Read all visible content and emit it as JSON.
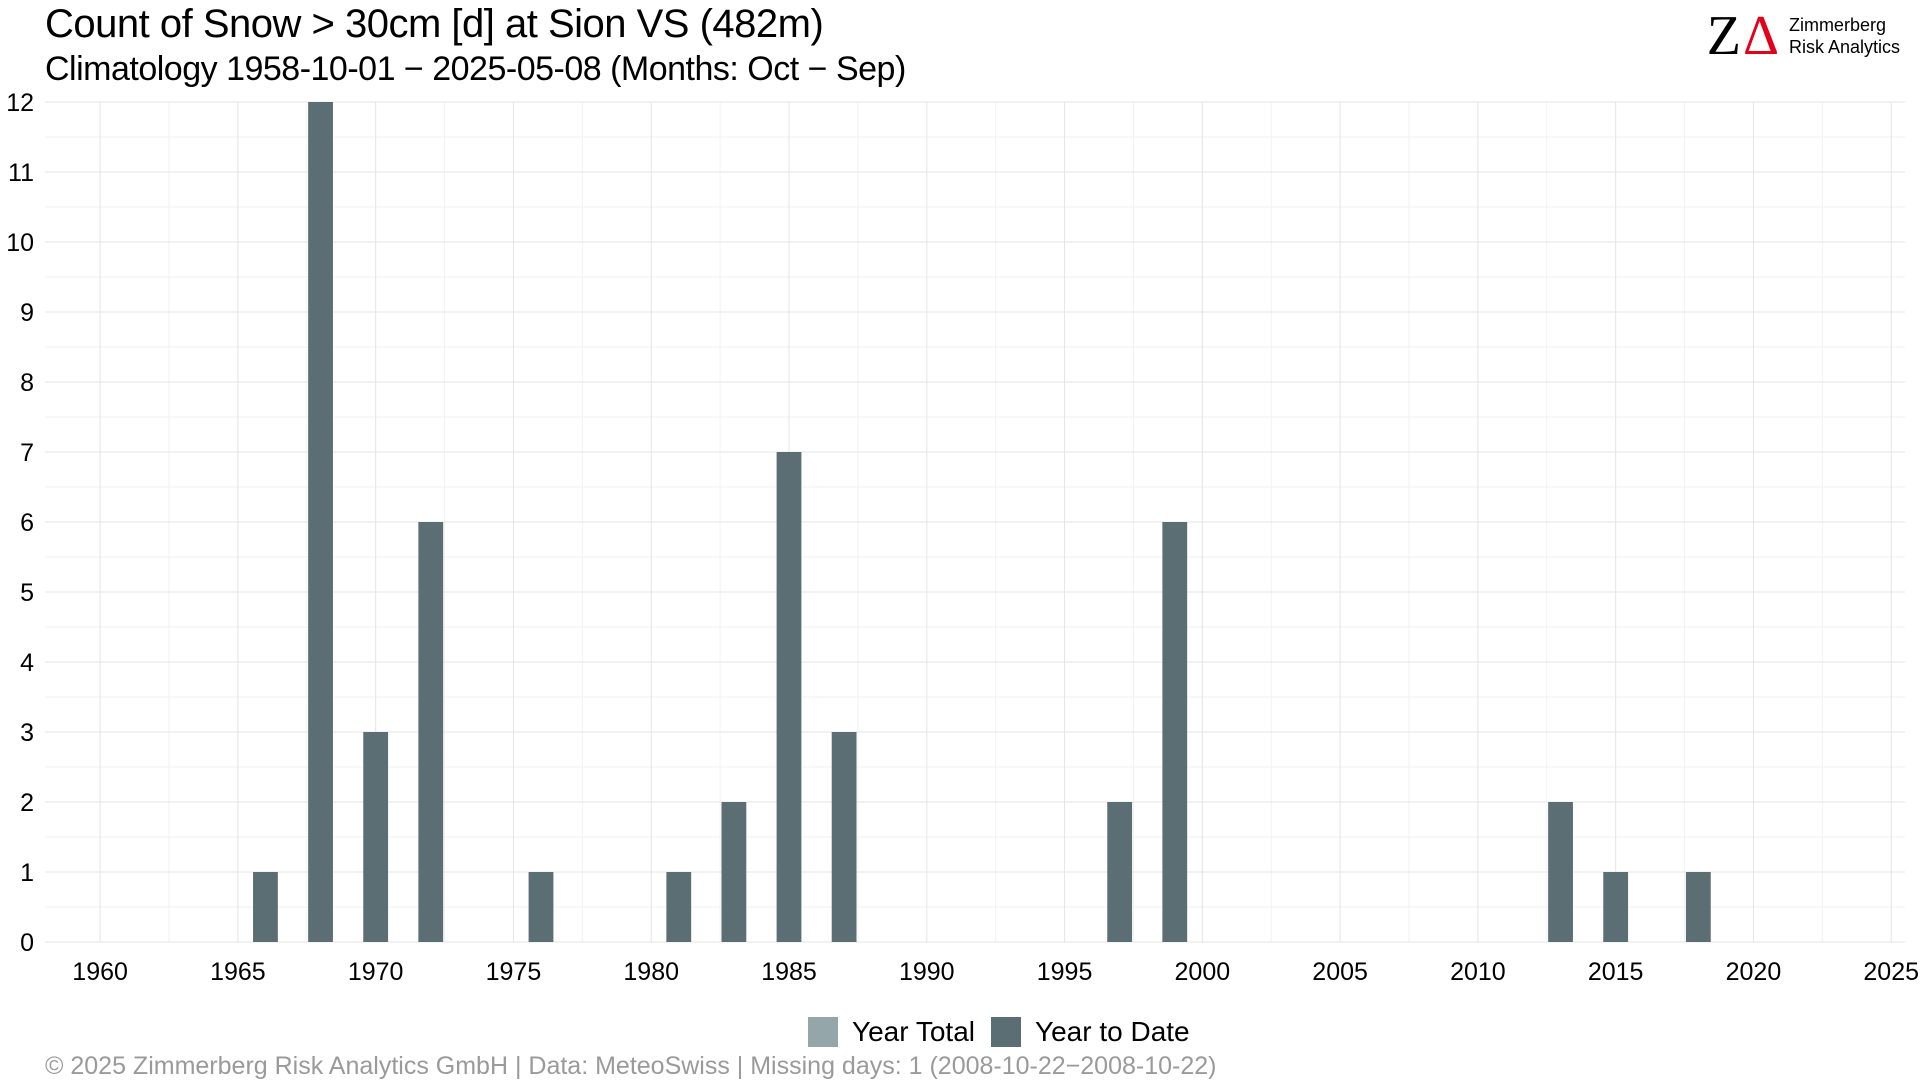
{
  "title": "Count of Snow > 30cm [d] at Sion  VS (482m)",
  "subtitle": "Climatology 1958-10-01 − 2025-05-08 (Months: Oct − Sep)",
  "logo": {
    "line1": "Zimmerberg",
    "line2": "Risk Analytics",
    "mark_z": "Z",
    "mark_delta": "Δ",
    "accent_color": "#e3001b"
  },
  "legend": {
    "items": [
      {
        "label": "Year Total",
        "color": "#95a6ab"
      },
      {
        "label": "Year to Date",
        "color": "#5a6e74"
      }
    ]
  },
  "footer": "©  2025 Zimmerberg Risk Analytics GmbH | Data: MeteoSwiss | Missing days: 1 (2008-10-22−2008-10-22)",
  "chart_data": {
    "type": "bar",
    "xlabel": "",
    "ylabel": "",
    "xlim": [
      1958,
      2025.5
    ],
    "ylim": [
      0,
      12
    ],
    "x_ticks": [
      1960,
      1965,
      1970,
      1975,
      1980,
      1985,
      1990,
      1995,
      2000,
      2005,
      2010,
      2015,
      2020,
      2025
    ],
    "y_ticks": [
      0,
      1,
      2,
      3,
      4,
      5,
      6,
      7,
      8,
      9,
      10,
      11,
      12
    ],
    "grid": true,
    "legend_position": "bottom",
    "series": [
      {
        "name": "Year to Date",
        "color": "#5a6e74",
        "points": [
          {
            "x": 1966,
            "y": 1
          },
          {
            "x": 1968,
            "y": 12
          },
          {
            "x": 1970,
            "y": 3
          },
          {
            "x": 1972,
            "y": 6
          },
          {
            "x": 1976,
            "y": 1
          },
          {
            "x": 1981,
            "y": 1
          },
          {
            "x": 1983,
            "y": 2
          },
          {
            "x": 1985,
            "y": 7
          },
          {
            "x": 1987,
            "y": 3
          },
          {
            "x": 1997,
            "y": 2
          },
          {
            "x": 1999,
            "y": 6
          },
          {
            "x": 2013,
            "y": 2
          },
          {
            "x": 2015,
            "y": 1
          },
          {
            "x": 2018,
            "y": 1
          }
        ]
      }
    ]
  }
}
